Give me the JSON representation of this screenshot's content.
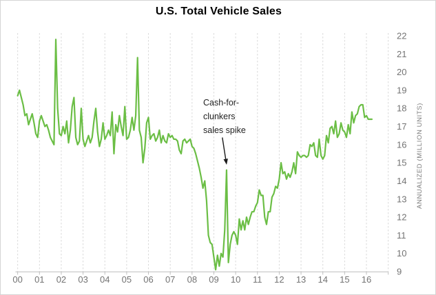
{
  "chart_data": {
    "type": "line",
    "title": "U.S. Total Vehicle Sales",
    "ylabel": "ANNUALIZED (MILLION UNITS)",
    "xlabel": "",
    "x_start": "2000-01",
    "frequency": "monthly",
    "x_tick_labels": [
      "00",
      "01",
      "02",
      "03",
      "04",
      "05",
      "06",
      "07",
      "08",
      "09",
      "10",
      "11",
      "12",
      "13",
      "14",
      "15",
      "16"
    ],
    "y_tick_labels": [
      9,
      10,
      11,
      12,
      13,
      14,
      15,
      16,
      17,
      18,
      19,
      20,
      21,
      22
    ],
    "ylim": [
      9,
      22
    ],
    "grid": "vertical-dashed",
    "legend": "none",
    "line_color": "#6BBE45",
    "axis_text_color": "#737373",
    "gridline_color": "#d9d9d9",
    "axis_line_color": "#bfbfbf",
    "annotation": {
      "text": "Cash-for-\nclunkers\nsales spike",
      "arrow": "points down to August 2009 spike",
      "target_value": 14.6
    },
    "series": [
      {
        "name": "U.S. total vehicle sales (annualized, million units)",
        "values": [
          18.7,
          19.0,
          18.6,
          18.2,
          17.6,
          17.7,
          17.1,
          17.4,
          17.7,
          17.2,
          16.6,
          16.4,
          17.3,
          17.6,
          17.3,
          17.0,
          17.1,
          16.8,
          16.4,
          16.2,
          16.0,
          21.8,
          18.0,
          16.6,
          16.5,
          17.0,
          16.6,
          17.3,
          16.1,
          16.8,
          18.1,
          18.6,
          16.4,
          16.0,
          16.2,
          18.0,
          16.3,
          15.9,
          16.2,
          16.5,
          16.1,
          16.4,
          17.3,
          18.0,
          16.7,
          15.9,
          16.3,
          17.2,
          16.3,
          16.5,
          16.8,
          16.5,
          17.8,
          15.5,
          17.1,
          16.7,
          17.6,
          17.0,
          16.5,
          18.1,
          16.3,
          16.4,
          16.8,
          17.5,
          16.8,
          17.6,
          20.8,
          16.8,
          16.4,
          15.0,
          15.8,
          17.2,
          17.5,
          16.3,
          16.5,
          16.6,
          16.2,
          16.4,
          16.8,
          16.1,
          16.5,
          16.2,
          16.1,
          16.6,
          16.4,
          16.5,
          16.3,
          16.3,
          16.2,
          15.7,
          15.5,
          16.2,
          16.3,
          16.1,
          16.2,
          16.3,
          15.9,
          15.8,
          15.5,
          15.1,
          14.7,
          14.2,
          13.6,
          14.0,
          12.9,
          11.0,
          10.6,
          10.5,
          9.8,
          9.1,
          9.9,
          9.3,
          10.0,
          9.8,
          11.3,
          14.6,
          9.5,
          10.5,
          11.0,
          11.2,
          11.0,
          10.5,
          11.9,
          11.3,
          11.8,
          11.3,
          12.0,
          11.6,
          12.0,
          12.3,
          12.3,
          12.6,
          12.8,
          13.5,
          13.2,
          13.2,
          12.0,
          11.6,
          12.3,
          12.3,
          13.1,
          13.3,
          13.7,
          13.6,
          14.1,
          15.0,
          14.4,
          14.5,
          14.1,
          14.4,
          14.2,
          14.5,
          15.0,
          14.4,
          15.6,
          15.4,
          15.3,
          15.4,
          15.4,
          15.3,
          15.4,
          16.0,
          15.9,
          16.1,
          15.4,
          15.3,
          16.3,
          15.4,
          15.2,
          15.4,
          16.5,
          16.1,
          16.9,
          17.0,
          16.6,
          17.3,
          16.4,
          16.6,
          17.2,
          16.8,
          16.7,
          16.4,
          17.1,
          16.6,
          17.8,
          17.2,
          17.6,
          17.7,
          18.1,
          18.2,
          18.2,
          17.5,
          17.6,
          17.4,
          17.4,
          17.4
        ]
      }
    ]
  }
}
